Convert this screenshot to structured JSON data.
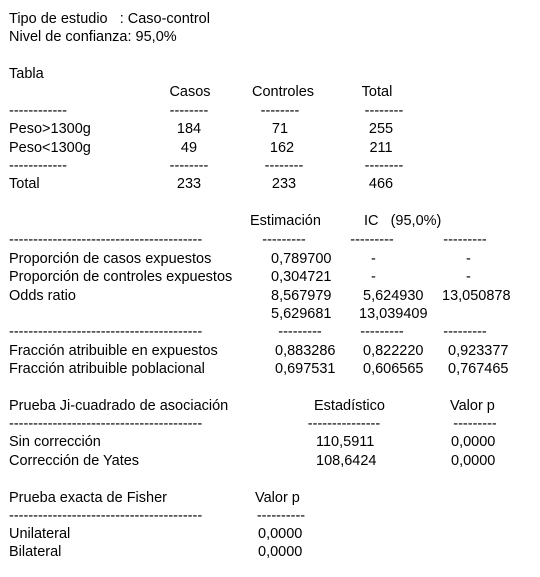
{
  "header": {
    "tipo": "Tipo de estudio   : Caso-control",
    "nivel": "Nivel de confianza: 95,0%"
  },
  "tabla": {
    "title": "Tabla",
    "columns": [
      "Casos",
      "Controles",
      "Total"
    ],
    "rule_label": "------------",
    "rule_col": "--------",
    "rows": [
      {
        "label": "Peso>1300g",
        "values": [
          "184",
          "71",
          "255"
        ]
      },
      {
        "label": "Peso<1300g",
        "values": [
          "49",
          "162",
          "211"
        ]
      }
    ],
    "total": {
      "label": "Total",
      "values": [
        "233",
        "233",
        "466"
      ]
    }
  },
  "estimacion": {
    "col_est": "Estimación",
    "col_ic": "IC   (95,0%)",
    "rule_label": "----------------------------------------",
    "rule_col": "---------",
    "rows": [
      {
        "label": "Proporción de casos expuestos",
        "est": "0,789700",
        "lo": "-",
        "hi": "-"
      },
      {
        "label": "Proporción de controles expuestos",
        "est": "0,304721",
        "lo": "-",
        "hi": "-"
      },
      {
        "label": "Odds ratio",
        "est": "8,567979",
        "lo": "5,624930",
        "hi": "13,050878"
      }
    ],
    "extra": {
      "est": "5,629681",
      "lo": "13,039409"
    },
    "fraccion": [
      {
        "label": "Fracción atribuible en expuestos",
        "est": "0,883286",
        "lo": "0,822220",
        "hi": "0,923377"
      },
      {
        "label": "Fracción atribuible poblacional",
        "est": "0,697531",
        "lo": "0,606565",
        "hi": "0,767465"
      }
    ]
  },
  "chi": {
    "title": "Prueba Ji-cuadrado de asociación",
    "col_stat": "Estadístico",
    "col_p": "Valor p",
    "rule_label": "----------------------------------------",
    "rule_stat": "---------------",
    "rule_p": "---------",
    "rows": [
      {
        "label": "Sin corrección",
        "stat": "110,5911",
        "p": "0,0000"
      },
      {
        "label": "Corrección de Yates",
        "stat": "108,6424",
        "p": "0,0000"
      }
    ]
  },
  "fisher": {
    "title": "Prueba exacta de Fisher",
    "col_p": "Valor p",
    "rule_label": "----------------------------------------",
    "rule_p": "----------",
    "rows": [
      {
        "label": "Unilateral",
        "p": "0,0000"
      },
      {
        "label": "Bilateral",
        "p": "0,0000"
      }
    ]
  }
}
